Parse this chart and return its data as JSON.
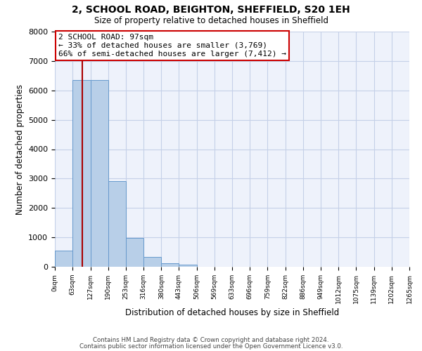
{
  "title": "2, SCHOOL ROAD, BEIGHTON, SHEFFIELD, S20 1EH",
  "subtitle": "Size of property relative to detached houses in Sheffield",
  "xlabel": "Distribution of detached houses by size in Sheffield",
  "ylabel": "Number of detached properties",
  "bar_values": [
    550,
    6350,
    6350,
    2920,
    970,
    340,
    130,
    80,
    0,
    0,
    0,
    0,
    0,
    0,
    0,
    0,
    0,
    0,
    0,
    0
  ],
  "bin_labels": [
    "0sqm",
    "63sqm",
    "127sqm",
    "190sqm",
    "253sqm",
    "316sqm",
    "380sqm",
    "443sqm",
    "506sqm",
    "569sqm",
    "633sqm",
    "696sqm",
    "759sqm",
    "822sqm",
    "886sqm",
    "949sqm",
    "1012sqm",
    "1075sqm",
    "1139sqm",
    "1202sqm",
    "1265sqm"
  ],
  "bar_color": "#b8cfe8",
  "bar_edge_color": "#6699cc",
  "property_line_x": 97,
  "annotation_title": "2 SCHOOL ROAD: 97sqm",
  "annotation_line1": "← 33% of detached houses are smaller (3,769)",
  "annotation_line2": "66% of semi-detached houses are larger (7,412) →",
  "annotation_box_color": "#ffffff",
  "annotation_box_edge": "#cc0000",
  "vline_color": "#aa0000",
  "ylim": [
    0,
    8000
  ],
  "bin_edges": [
    0,
    63,
    127,
    190,
    253,
    316,
    380,
    443,
    506,
    569,
    633,
    696,
    759,
    822,
    886,
    949,
    1012,
    1075,
    1139,
    1202,
    1265
  ],
  "footer_line1": "Contains HM Land Registry data © Crown copyright and database right 2024.",
  "footer_line2": "Contains public sector information licensed under the Open Government Licence v3.0.",
  "background_color": "#eef2fb",
  "grid_color": "#c5d0e8"
}
